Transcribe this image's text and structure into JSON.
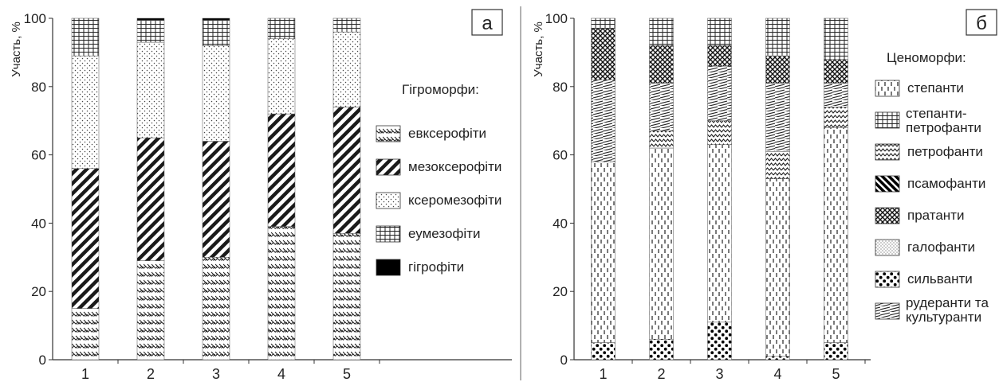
{
  "chart_data": [
    {
      "type": "bar",
      "stacked": true,
      "panel_label": "а",
      "ylabel": "Участь, %",
      "ylim": [
        0,
        100
      ],
      "yticks": [
        "0",
        "20",
        "40",
        "60",
        "80",
        "100"
      ],
      "categories": [
        "1",
        "2",
        "3",
        "4",
        "5"
      ],
      "grid": false,
      "legend_title": "Гігроморфи:",
      "legend_position": "right",
      "series": [
        {
          "name": "евксерофіти",
          "pattern": "brick",
          "values": [
            15,
            29,
            30,
            39,
            37
          ]
        },
        {
          "name": "мезоксерофіти",
          "pattern": "diag",
          "values": [
            41,
            36,
            34,
            33,
            37
          ]
        },
        {
          "name": "ксеромезофіти",
          "pattern": "dots",
          "values": [
            33,
            28,
            28,
            22,
            22
          ]
        },
        {
          "name": "еумезофіти",
          "pattern": "grid",
          "values": [
            11,
            6.5,
            7.5,
            6,
            4
          ]
        },
        {
          "name": "гігрофіти",
          "pattern": "solid",
          "values": [
            0,
            0.5,
            0.5,
            0,
            0
          ]
        }
      ]
    },
    {
      "type": "bar",
      "stacked": true,
      "panel_label": "б",
      "ylabel": "Участь, %",
      "ylim": [
        0,
        100
      ],
      "yticks": [
        "0",
        "20",
        "40",
        "60",
        "80",
        "100"
      ],
      "categories": [
        "1",
        "2",
        "3",
        "4",
        "5"
      ],
      "grid": false,
      "legend_title": "Ценоморфи:",
      "legend_position": "right",
      "series": [
        {
          "name": "сильванти",
          "pattern": "bigdots",
          "values": [
            5,
            6,
            11,
            1,
            5
          ]
        },
        {
          "name": "галофанти",
          "pattern": "fine",
          "values": [
            0,
            0,
            0,
            0,
            0
          ]
        },
        {
          "name": "степанти",
          "pattern": "dash",
          "values": [
            53,
            56,
            52,
            52,
            63
          ]
        },
        {
          "name": "псамофанти",
          "pattern": "thick",
          "values": [
            0,
            0,
            0,
            0,
            0
          ]
        },
        {
          "name": "петрофанти",
          "pattern": "zigzag",
          "values": [
            0,
            5,
            7,
            8,
            6
          ]
        },
        {
          "name": "рудеранти та культуранти",
          "pattern": "wavy",
          "values": [
            24,
            14,
            16,
            20,
            7
          ]
        },
        {
          "name": "пратанти",
          "pattern": "cross",
          "values": [
            15,
            11,
            6,
            8,
            7
          ]
        },
        {
          "name": "степанти-петрофанти",
          "pattern": "grid",
          "values": [
            3,
            8,
            8,
            11,
            12
          ]
        }
      ],
      "legend_order": [
        "степанти",
        "степанти-петрофанти",
        "петрофанти",
        "псамофанти",
        "пратанти",
        "галофанти",
        "сильванти",
        "рудеранти та культуранти"
      ]
    }
  ]
}
